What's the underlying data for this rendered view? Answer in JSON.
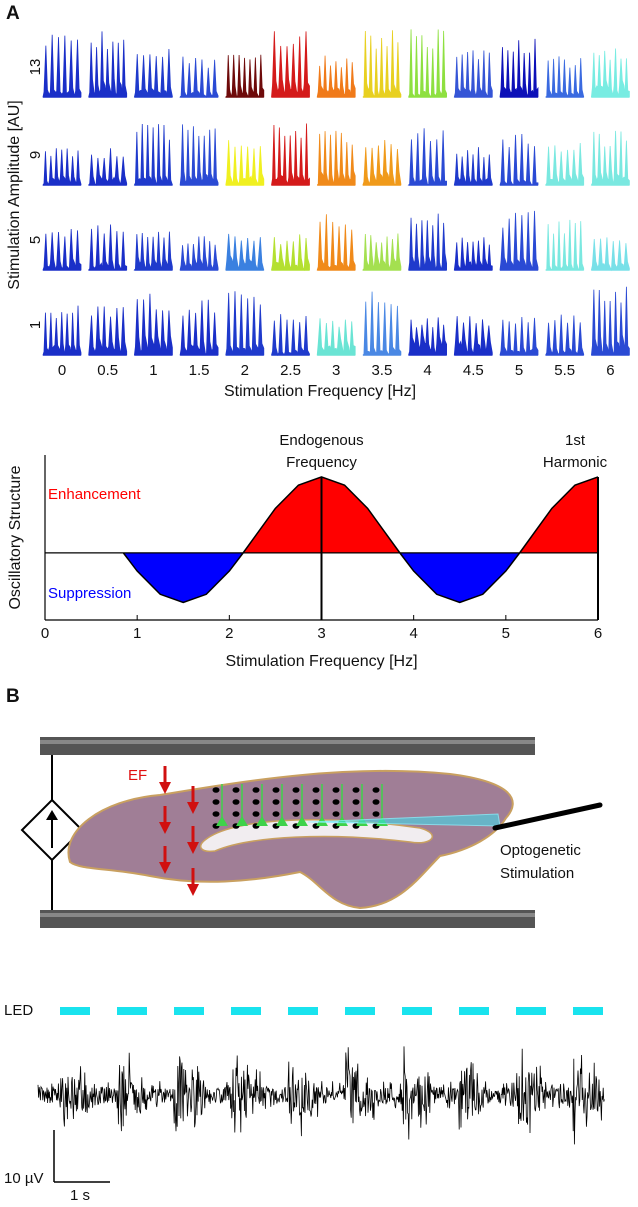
{
  "panel_labels": {
    "a": "A",
    "b": "B"
  },
  "grid": {
    "y_label": "Stimulation Amplitude [AU]",
    "x_label": "Stimulation Frequency [Hz]",
    "row_labels": [
      "13",
      "9",
      "5",
      "1"
    ],
    "column_labels": [
      "0",
      "0.5",
      "1",
      "1.5",
      "2",
      "2.5",
      "3",
      "3.5",
      "4",
      "4.5",
      "5",
      "5.5",
      "6"
    ],
    "colors": [
      [
        "#1a2fc8",
        "#1a2fc8",
        "#1f3acc",
        "#2a4ad4",
        "#6e0a0a",
        "#d41a1a",
        "#f07a1a",
        "#e8d020",
        "#8ee040",
        "#3555d6",
        "#0c10b8",
        "#3a6ae0",
        "#78ece2"
      ],
      [
        "#1a2fc8",
        "#1a2fc8",
        "#1f3acc",
        "#2a4ad4",
        "#f0f020",
        "#d41a1a",
        "#f08a1a",
        "#f09a1a",
        "#2a4ad4",
        "#1f3acc",
        "#2a4ad4",
        "#7ae8e0",
        "#7ae8e0"
      ],
      [
        "#1a2fc8",
        "#1a2fc8",
        "#1f3acc",
        "#2a4ad4",
        "#3a80e0",
        "#b4e030",
        "#f08a1a",
        "#a4e050",
        "#1f3acc",
        "#1a2fc8",
        "#2a4ad4",
        "#7ae8e0",
        "#78e0e8"
      ],
      [
        "#1a2fc8",
        "#1a2fc8",
        "#1a2fc8",
        "#1a2fc8",
        "#1f3acc",
        "#1f3acc",
        "#6ae4d4",
        "#4a88e4",
        "#1a2fc8",
        "#1a2fc8",
        "#2a4ad4",
        "#2a4ad4",
        "#2a4ad4"
      ]
    ]
  },
  "chart_data": {
    "type": "line",
    "ylabel": "Oscillatory Structure",
    "xlabel": "Stimulation Frequency [Hz]",
    "x": [
      0.85,
      1.0,
      1.25,
      1.5,
      1.75,
      2.0,
      2.15,
      2.5,
      2.75,
      3.0,
      3.25,
      3.5,
      3.85,
      4.0,
      4.25,
      4.5,
      4.75,
      5.0,
      5.15,
      5.5,
      5.75,
      6.0
    ],
    "values": [
      0.0,
      -0.29,
      -0.66,
      -0.79,
      -0.66,
      -0.29,
      0.0,
      0.71,
      1.08,
      1.21,
      1.08,
      0.71,
      0.0,
      -0.29,
      -0.66,
      -0.79,
      -0.66,
      -0.29,
      0.0,
      0.71,
      1.08,
      1.21
    ],
    "xlim": [
      0,
      6
    ],
    "ylim": [
      -1.07,
      1.56
    ],
    "xticks": [
      0,
      1,
      2,
      3,
      4,
      5,
      6
    ],
    "positive_color": "#ff0000",
    "negative_color": "#0000ff",
    "annotations": [
      {
        "text_lines": [
          "Endogenous",
          "Frequency"
        ],
        "x": 3
      },
      {
        "text_lines": [
          "1st",
          "Harmonic"
        ],
        "x": 6
      }
    ],
    "region_labels": [
      {
        "text": "Enhancement",
        "color": "#ff0000"
      },
      {
        "text": "Suppression",
        "color": "#0000ff"
      }
    ]
  },
  "diagram": {
    "field_label": "EF",
    "stimulation_label": [
      "Optogenetic",
      "Stimulation"
    ],
    "led_label": "LED",
    "scale_voltage": "10 µV",
    "scale_time": "1 s"
  }
}
